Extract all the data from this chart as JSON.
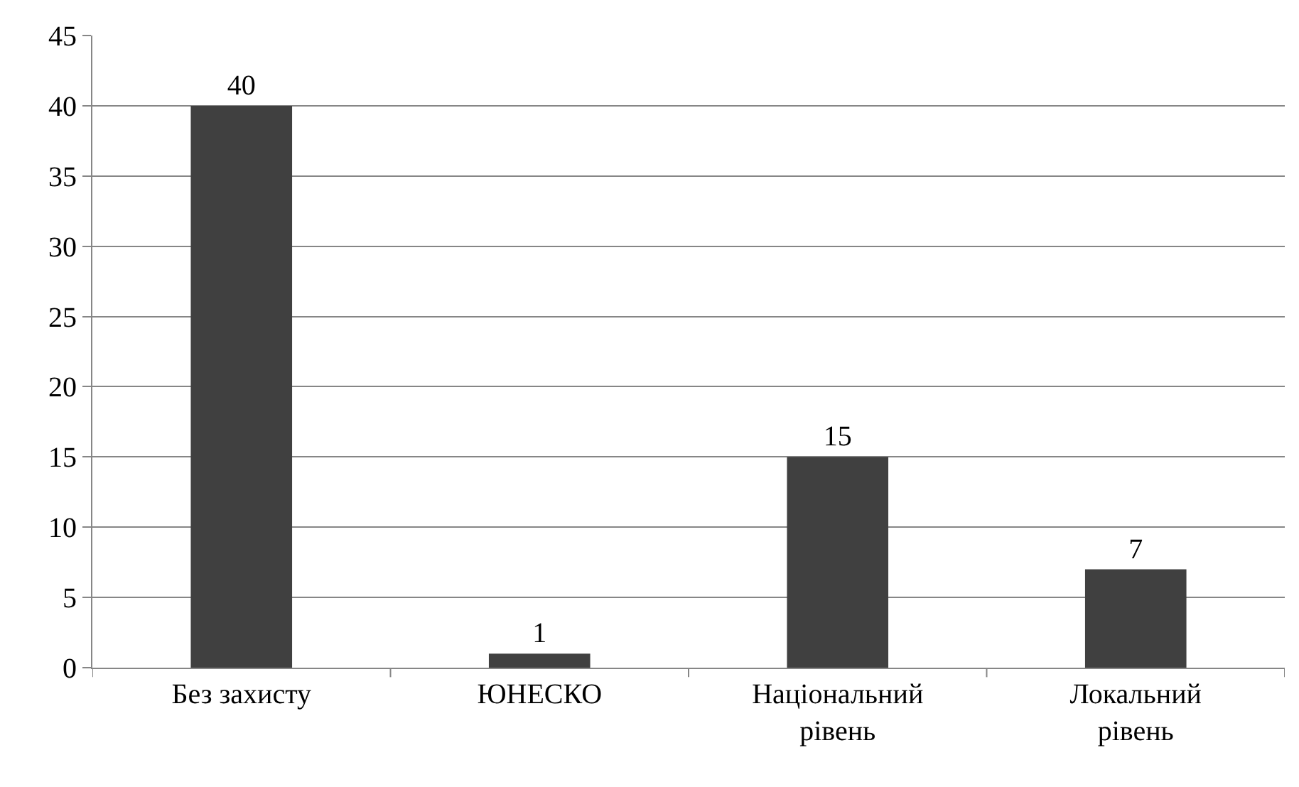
{
  "chart_data": {
    "type": "bar",
    "categories": [
      "Без захисту",
      "ЮНЕСКО",
      "Національний рівень",
      "Локальний рівень"
    ],
    "values": [
      40,
      1,
      15,
      7
    ],
    "color": "#404040",
    "ylim": [
      0,
      45
    ],
    "yticks": [
      0,
      5,
      10,
      15,
      20,
      25,
      30,
      35,
      40,
      45
    ],
    "grid": "y",
    "data_labels": true,
    "legend": false
  }
}
